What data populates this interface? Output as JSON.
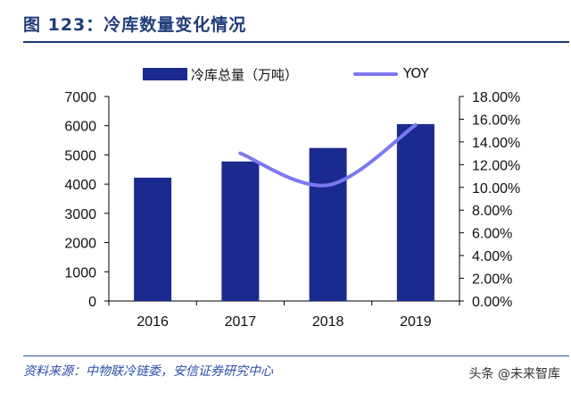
{
  "figure": {
    "title": "图 123：冷库数量变化情况",
    "source": "资料来源：中物联冷链委，安信证券研究中心",
    "watermark": "头条 @未来智库"
  },
  "colors": {
    "title": "#1f3b7a",
    "bar": "#1b2a8f",
    "line": "#7c78f0",
    "axis": "#000000"
  },
  "chart_data": {
    "type": "bar",
    "categories": [
      "2016",
      "2017",
      "2018",
      "2019"
    ],
    "series": [
      {
        "name": "冷库总量（万吨）",
        "type": "bar",
        "axis": "left",
        "values": [
          4220,
          4775,
          5238,
          6053
        ]
      },
      {
        "name": "YOY",
        "type": "line",
        "axis": "right",
        "smooth": true,
        "values": [
          null,
          0.13,
          0.102,
          0.155
        ]
      }
    ],
    "ylim": [
      0,
      7000
    ],
    "yticks": [
      "0",
      "1000",
      "2000",
      "3000",
      "4000",
      "5000",
      "6000",
      "7000"
    ],
    "y2lim": [
      0,
      0.18
    ],
    "y2ticks": [
      "0.00%",
      "2.00%",
      "4.00%",
      "6.00%",
      "8.00%",
      "10.00%",
      "12.00%",
      "14.00%",
      "16.00%",
      "18.00%"
    ],
    "legend_position": "top",
    "grid": false
  }
}
